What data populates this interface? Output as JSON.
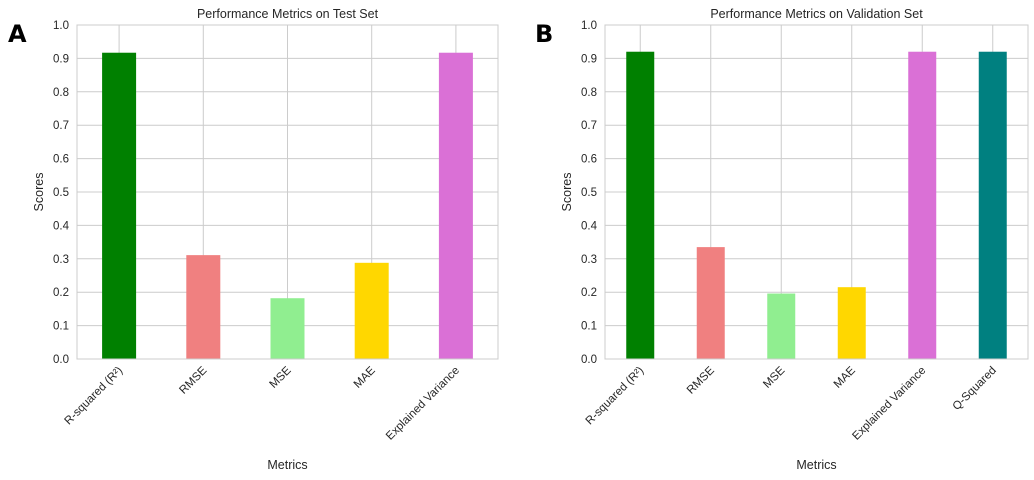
{
  "chart_data": [
    {
      "type": "bar",
      "panel_label": "A",
      "title": "Performance Metrics on Test Set",
      "xlabel": "Metrics",
      "ylabel": "Scores",
      "ylim": [
        0,
        1.0
      ],
      "yticks": [
        "0.0",
        "0.1",
        "0.2",
        "0.3",
        "0.4",
        "0.5",
        "0.6",
        "0.7",
        "0.8",
        "0.9",
        "1.0"
      ],
      "grid": true,
      "categories": [
        "R-squared (R²)",
        "RMSE",
        "MSE",
        "MAE",
        "Explained Variance"
      ],
      "values": [
        0.917,
        0.311,
        0.182,
        0.288,
        0.917
      ],
      "colors": [
        "#008000",
        "#f08080",
        "#90ee90",
        "#ffd700",
        "#da70d6"
      ]
    },
    {
      "type": "bar",
      "panel_label": "B",
      "title": "Performance Metrics on Validation Set",
      "xlabel": "Metrics",
      "ylabel": "Scores",
      "ylim": [
        0,
        1.0
      ],
      "yticks": [
        "0.0",
        "0.1",
        "0.2",
        "0.3",
        "0.4",
        "0.5",
        "0.6",
        "0.7",
        "0.8",
        "0.9",
        "1.0"
      ],
      "grid": true,
      "categories": [
        "R-squared (R²)",
        "RMSE",
        "MSE",
        "MAE",
        "Explained Variance",
        "Q-Squared"
      ],
      "values": [
        0.92,
        0.335,
        0.196,
        0.215,
        0.92,
        0.92
      ],
      "colors": [
        "#008000",
        "#f08080",
        "#90ee90",
        "#ffd700",
        "#da70d6",
        "#008080"
      ]
    }
  ]
}
